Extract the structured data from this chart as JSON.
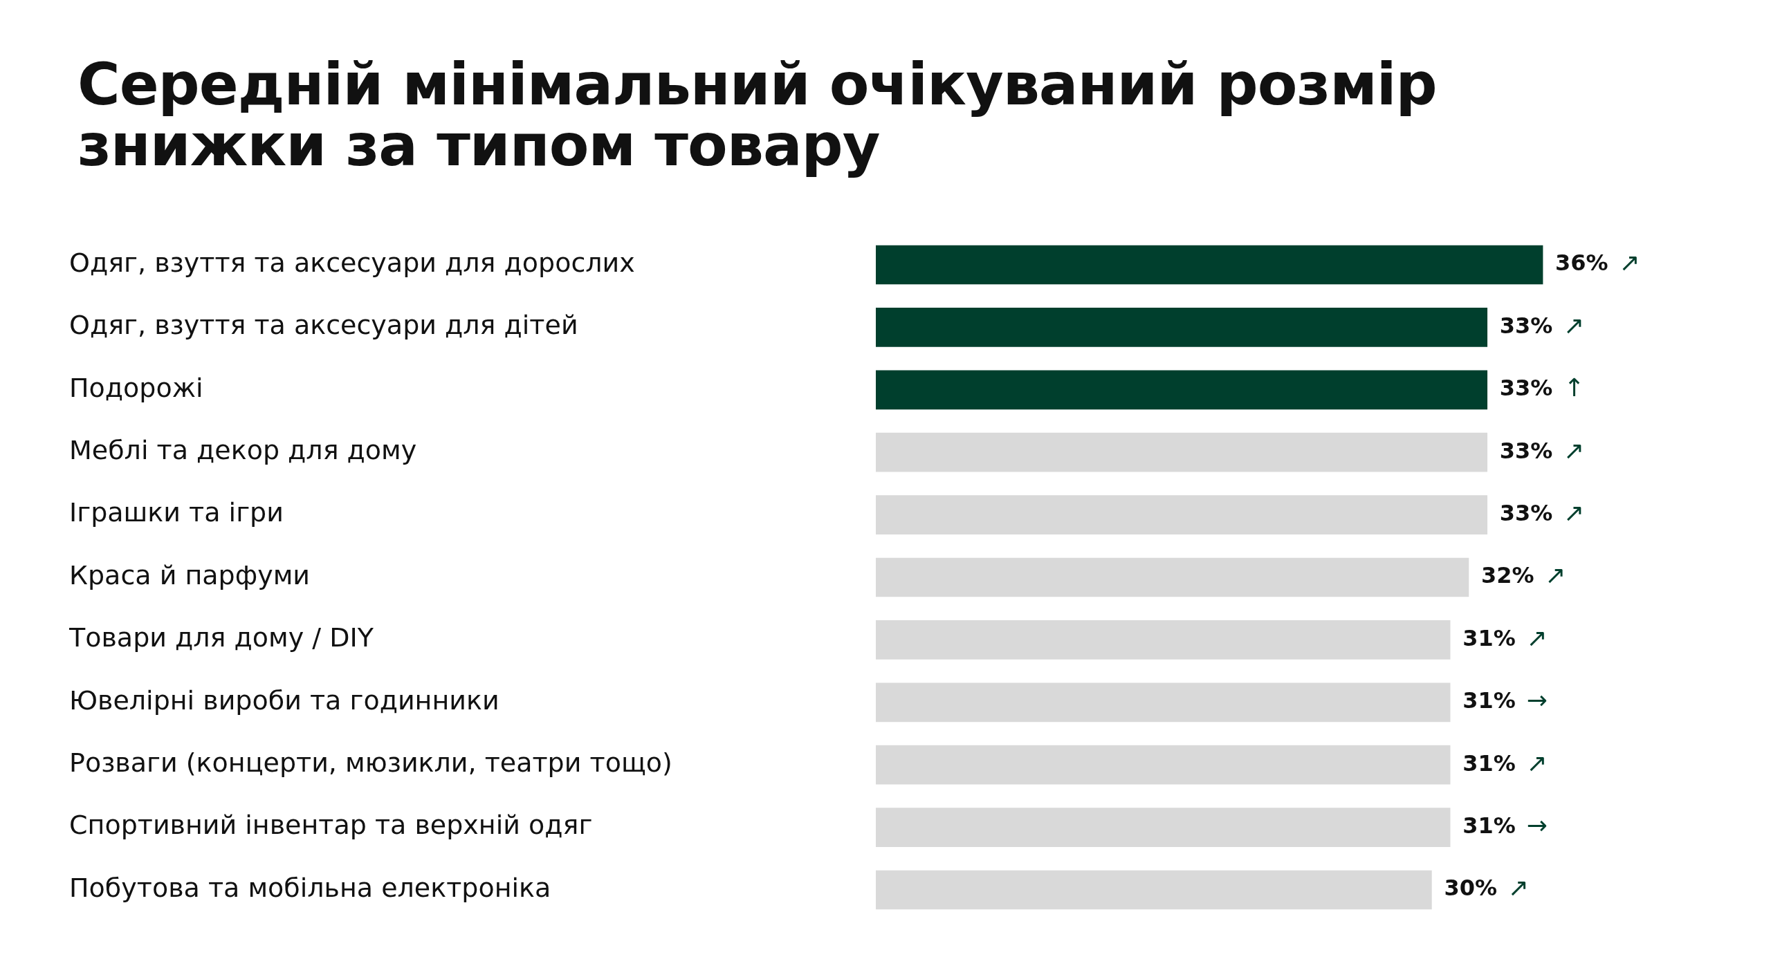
{
  "chart_data": {
    "type": "bar",
    "orientation": "horizontal",
    "title": "Середній мінімальний очікуваний розмір знижки за типом товару",
    "categories": [
      "Одяг, взуття та аксесуари для дорослих",
      "Одяг, взуття та аксесуари для дітей",
      "Подорожі",
      "Меблі та декор для дому",
      "Іграшки та ігри",
      "Краса й парфуми",
      "Товари для дому / DIY",
      "Ювелірні вироби та годинники",
      "Розваги (концерти, мюзикли, театри тощо)",
      "Спортивний інвентар та верхній одяг",
      "Побутова та мобільна електроніка"
    ],
    "values": [
      36,
      33,
      33,
      33,
      33,
      32,
      31,
      31,
      31,
      31,
      30
    ],
    "colors": [
      "#003f2d",
      "#003f2d",
      "#003f2d",
      "#d9d9d9",
      "#d9d9d9",
      "#d9d9d9",
      "#d9d9d9",
      "#d9d9d9",
      "#d9d9d9",
      "#d9d9d9",
      "#d9d9d9"
    ],
    "value_labels": [
      "36% ↗",
      "33% ↗",
      "33% ↑",
      "33% ↗",
      "33% ↗",
      "32% ↗",
      "31% ↗",
      "31% →",
      "31% ↗",
      "31% →",
      "30% ↗"
    ],
    "legend": false,
    "grid": false
  }
}
